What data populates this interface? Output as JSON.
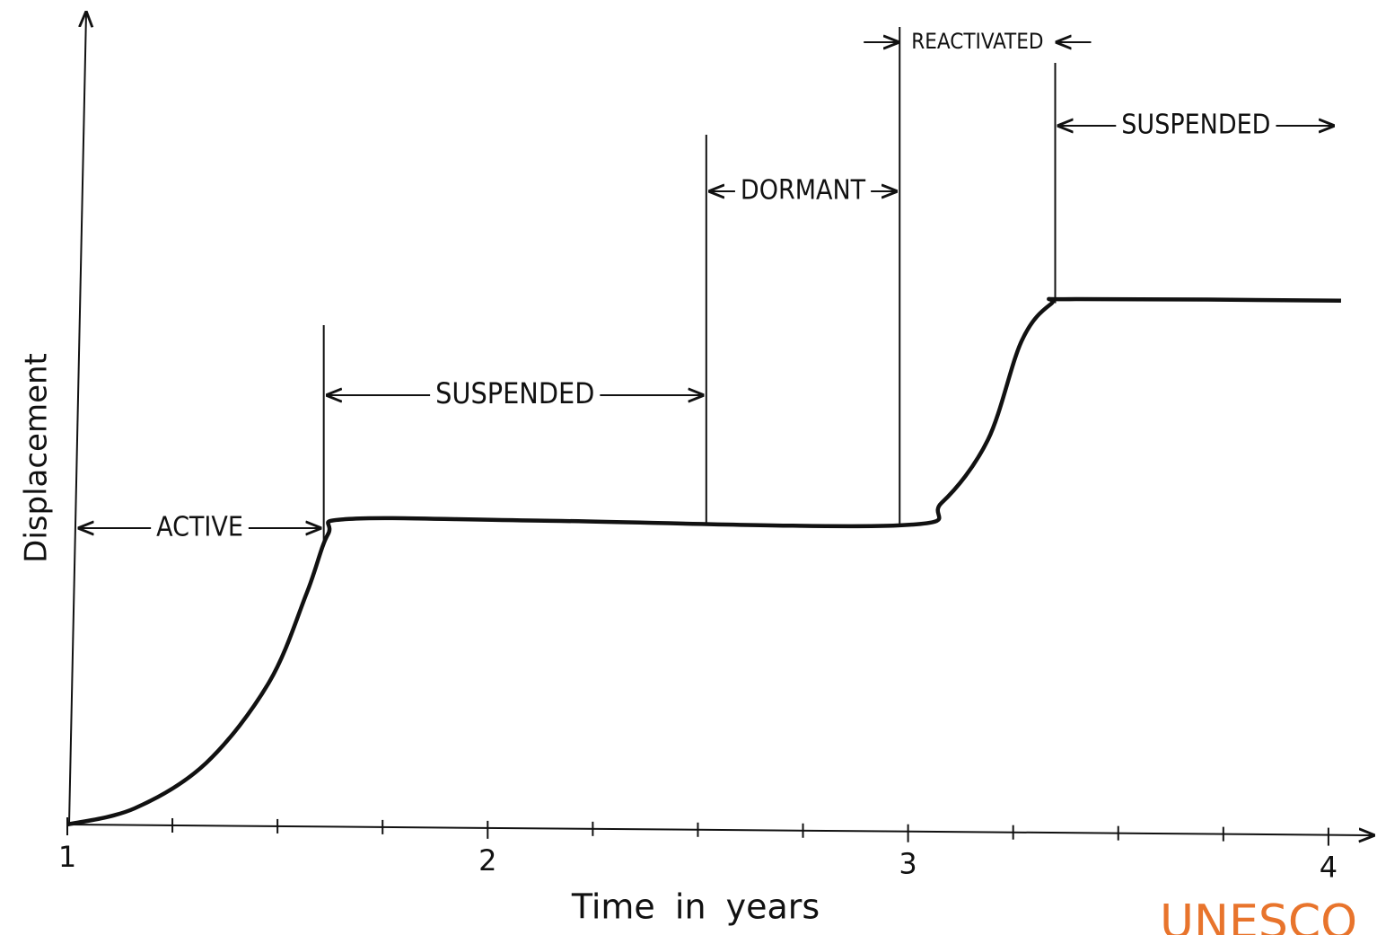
{
  "chart_data": {
    "type": "line",
    "xlabel": "Time in years",
    "ylabel": "Displacement",
    "xlim": [
      1,
      4.12
    ],
    "ylim": [
      0,
      100
    ],
    "xticks": [
      1,
      2,
      3,
      4
    ],
    "xminorticks": [
      1.25,
      1.5,
      1.75,
      2.25,
      2.5,
      2.75,
      3.25,
      3.5,
      3.75
    ],
    "x": [
      1,
      1.16,
      1.33,
      1.48,
      1.57,
      1.62,
      1.67,
      2.12,
      2.975,
      3.08,
      3.19,
      3.27,
      3.34,
      3.4,
      4.03
    ],
    "series": [
      {
        "color": "#111111",
        "values": [
          0,
          2,
          7.6,
          17.6,
          28.7,
          35.9,
          37.8,
          37.6,
          37,
          39.8,
          47.6,
          59.8,
          64.4,
          65,
          64.8
        ]
      }
    ],
    "phases": [
      {
        "label": "ACTIVE",
        "start": 1.02,
        "end": 1.61
      },
      {
        "label": "SUSPENDED",
        "start": 1.61,
        "end": 2.52
      },
      {
        "label": "DORMANT",
        "start": 2.52,
        "end": 2.98
      },
      {
        "label": "REACTIVATED",
        "start": 2.98,
        "end": 3.35
      },
      {
        "label": "SUSPENDED",
        "start": 3.35,
        "end": 4.02
      }
    ],
    "watermark": "UNESCO"
  }
}
